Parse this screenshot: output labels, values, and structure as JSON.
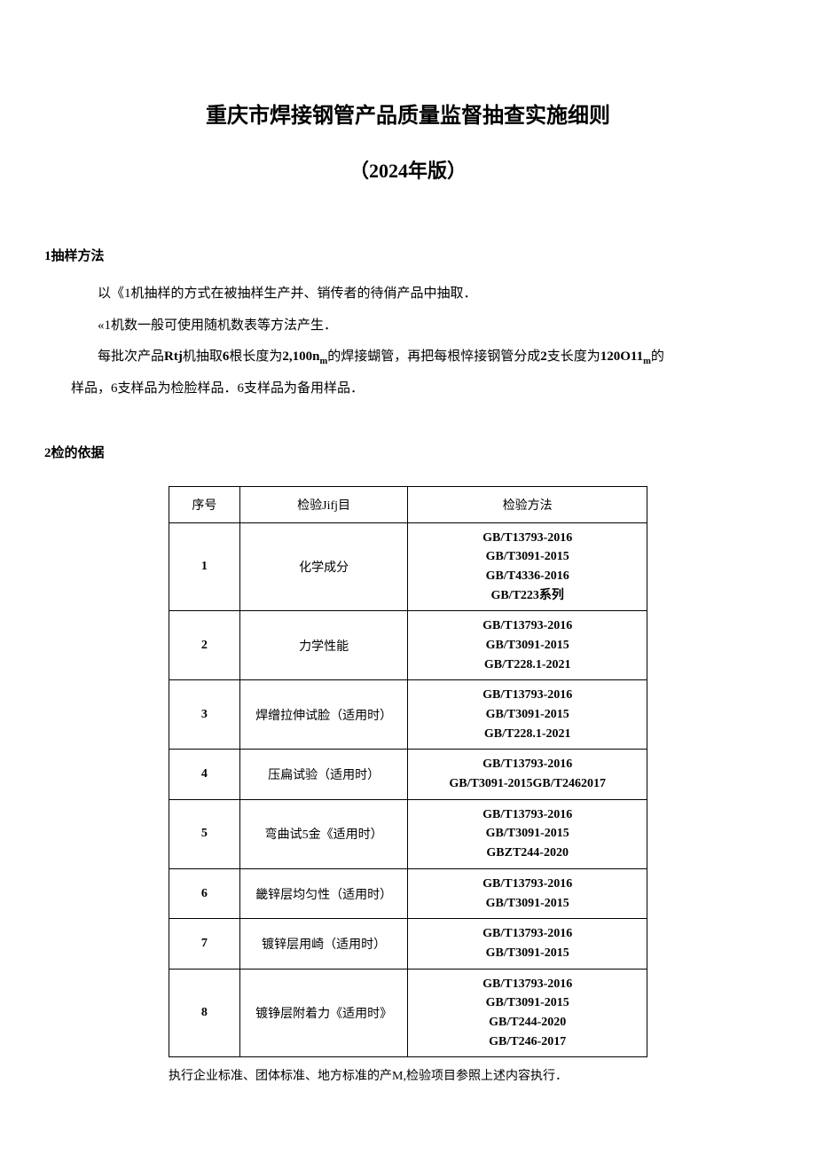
{
  "doc": {
    "title": "重庆市焊接钢管产品质量监督抽查实施细则",
    "subtitle": "（2024年版）",
    "section1_heading": "1抽样方法",
    "para1": "以《1机抽样的方式在被抽样生产并、销传者的待俏产品中抽取．",
    "para2": "«1机数一般可使用随机数表等方法产生．",
    "para3_pre": "每批次产品",
    "para3_b1": "Rtj",
    "para3_mid1": "机抽取",
    "para3_b2": "6",
    "para3_mid2": "根长度为",
    "para3_b3": "2,100n",
    "para3_sub1": "m",
    "para3_mid3": "的焊接蝴管，再把每根悴接钢管分成",
    "para3_b4": "2",
    "para3_mid4": "支长度为",
    "para3_b5": "120O11",
    "para3_sub2": "m",
    "para3_mid5": "的",
    "para4_pre": "样品，",
    "para4_b1": "6",
    "para4_mid1": "支样品为检脸样品．",
    "para4_b2": "6",
    "para4_mid2": "支样品为备用样品．",
    "section2_heading": "2检的依据",
    "footnote": "执行企业标准、团体标准、地方标准的产M,检验项目参照上述内容执行．"
  },
  "table": {
    "headers": {
      "seq": "序号",
      "item": "检验Jifj目",
      "method": "检验方法"
    },
    "rows": [
      {
        "seq": "1",
        "item": "化学成分",
        "methods": [
          "GB/T13793-2016",
          "GB/T3091-2015",
          "GB/T4336-2016",
          "GB/T223系列"
        ]
      },
      {
        "seq": "2",
        "item": "力学性能",
        "methods": [
          "GB/T13793-2016",
          "GB/T3091-2015",
          "GB/T228.1-2021"
        ]
      },
      {
        "seq": "3",
        "item": "焊缯拉伸试脸（适用时）",
        "methods": [
          "GB/T13793-2016",
          "GB/T3091-2015",
          "GB/T228.1-2021"
        ]
      },
      {
        "seq": "4",
        "item": "压扁试验（适用时）",
        "methods": [
          "GB/T13793-2016",
          "GB/T3091-2015GB/T2462017"
        ]
      },
      {
        "seq": "5",
        "item": "弯曲试5金《适用时）",
        "methods": [
          "GB/T13793-2016",
          "GB/T3091-2015",
          "GBZT244-2020"
        ]
      },
      {
        "seq": "6",
        "item": "畿锌层均匀性（适用时）",
        "methods": [
          "GB/T13793-2016",
          "GB/T3091-2015"
        ]
      },
      {
        "seq": "7",
        "item": "镀锌层用崎（适用时）",
        "methods": [
          "GB/T13793-2016",
          "GB/T3091-2015"
        ]
      },
      {
        "seq": "8",
        "item": "镀铮层附着力《适用时》",
        "methods": [
          "GB/T13793-2016",
          "GB/T3091-2015",
          "GB/T244-2020",
          "GB/T246-2017"
        ]
      }
    ]
  },
  "style": {
    "background_color": "#ffffff",
    "text_color": "#000000",
    "border_color": "#000000",
    "title_fontsize": 24,
    "subtitle_fontsize": 22,
    "body_fontsize": 15,
    "table_fontsize": 14
  }
}
